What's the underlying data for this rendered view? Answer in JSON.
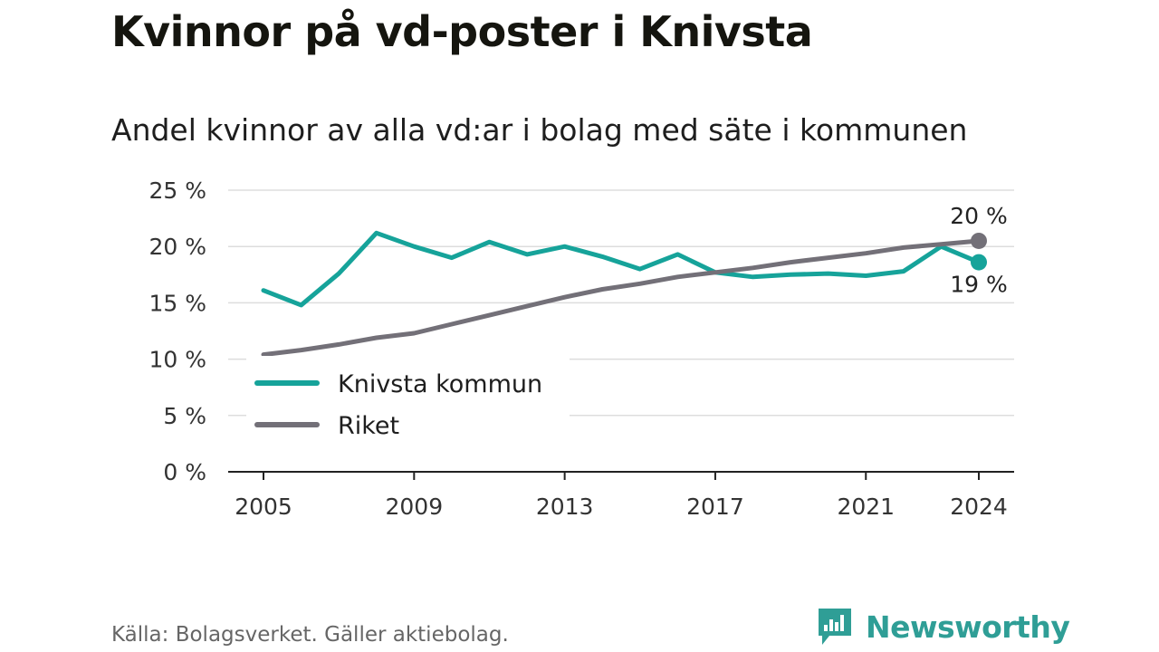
{
  "chart_data": {
    "type": "line",
    "title": "Kvinnor på vd-poster i Knivsta",
    "subtitle": "Andel kvinnor av alla vd:ar i bolag med säte i kommunen",
    "xlabel": "",
    "ylabel": "",
    "x": [
      2005,
      2006,
      2007,
      2008,
      2009,
      2010,
      2011,
      2012,
      2013,
      2014,
      2015,
      2016,
      2017,
      2018,
      2019,
      2020,
      2021,
      2022,
      2023,
      2024
    ],
    "xlim": [
      2005,
      2024
    ],
    "x_ticks": [
      2005,
      2009,
      2013,
      2017,
      2021,
      2024
    ],
    "x_tick_labels": [
      "2005",
      "2009",
      "2013",
      "2017",
      "2021",
      "2024"
    ],
    "ylim": [
      0,
      25
    ],
    "y_ticks": [
      0,
      5,
      10,
      15,
      20,
      25
    ],
    "y_tick_labels": [
      "0 %",
      "5 %",
      "10 %",
      "15 %",
      "20 %",
      "25 %"
    ],
    "grid": true,
    "legend_position": "bottom-left",
    "series": [
      {
        "name": "Knivsta kommun",
        "color": "#16a39a",
        "values": [
          16.1,
          14.8,
          17.6,
          21.2,
          20.0,
          19.0,
          20.4,
          19.3,
          20.0,
          19.1,
          18.0,
          19.3,
          17.7,
          17.3,
          17.5,
          17.6,
          17.4,
          17.8,
          20.0,
          18.6
        ],
        "end_label": "19 %"
      },
      {
        "name": "Riket",
        "color": "#737078",
        "values": [
          10.4,
          10.8,
          11.3,
          11.9,
          12.3,
          13.1,
          13.9,
          14.7,
          15.5,
          16.2,
          16.7,
          17.3,
          17.7,
          18.1,
          18.6,
          19.0,
          19.4,
          19.9,
          20.2,
          20.5
        ],
        "end_label": "20 %"
      }
    ]
  },
  "source": "Källa: Bolagsverket. Gäller aktiebolag.",
  "brand": {
    "name": "Newsworthy",
    "icon": "newsworthy-logo-icon",
    "color": "#2f9e96"
  }
}
